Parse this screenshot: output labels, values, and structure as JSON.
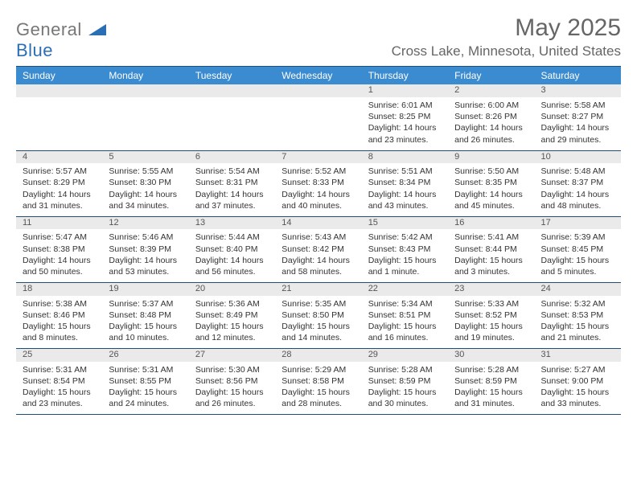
{
  "brand": {
    "name_part1": "General",
    "name_part2": "Blue"
  },
  "title": "May 2025",
  "location": "Cross Lake, Minnesota, United States",
  "colors": {
    "header_bg": "#3b8bd0",
    "header_text": "#ffffff",
    "rule": "#1f4e79",
    "daynum_bg": "#eaeaea",
    "text": "#333333",
    "muted": "#666666",
    "brand_gray": "#777777",
    "brand_blue": "#2a6fb5"
  },
  "day_headers": [
    "Sunday",
    "Monday",
    "Tuesday",
    "Wednesday",
    "Thursday",
    "Friday",
    "Saturday"
  ],
  "weeks": [
    {
      "nums": [
        "",
        "",
        "",
        "",
        "1",
        "2",
        "3"
      ],
      "cells": [
        null,
        null,
        null,
        null,
        {
          "sr": "Sunrise: 6:01 AM",
          "ss": "Sunset: 8:25 PM",
          "d1": "Daylight: 14 hours",
          "d2": "and 23 minutes."
        },
        {
          "sr": "Sunrise: 6:00 AM",
          "ss": "Sunset: 8:26 PM",
          "d1": "Daylight: 14 hours",
          "d2": "and 26 minutes."
        },
        {
          "sr": "Sunrise: 5:58 AM",
          "ss": "Sunset: 8:27 PM",
          "d1": "Daylight: 14 hours",
          "d2": "and 29 minutes."
        }
      ]
    },
    {
      "nums": [
        "4",
        "5",
        "6",
        "7",
        "8",
        "9",
        "10"
      ],
      "cells": [
        {
          "sr": "Sunrise: 5:57 AM",
          "ss": "Sunset: 8:29 PM",
          "d1": "Daylight: 14 hours",
          "d2": "and 31 minutes."
        },
        {
          "sr": "Sunrise: 5:55 AM",
          "ss": "Sunset: 8:30 PM",
          "d1": "Daylight: 14 hours",
          "d2": "and 34 minutes."
        },
        {
          "sr": "Sunrise: 5:54 AM",
          "ss": "Sunset: 8:31 PM",
          "d1": "Daylight: 14 hours",
          "d2": "and 37 minutes."
        },
        {
          "sr": "Sunrise: 5:52 AM",
          "ss": "Sunset: 8:33 PM",
          "d1": "Daylight: 14 hours",
          "d2": "and 40 minutes."
        },
        {
          "sr": "Sunrise: 5:51 AM",
          "ss": "Sunset: 8:34 PM",
          "d1": "Daylight: 14 hours",
          "d2": "and 43 minutes."
        },
        {
          "sr": "Sunrise: 5:50 AM",
          "ss": "Sunset: 8:35 PM",
          "d1": "Daylight: 14 hours",
          "d2": "and 45 minutes."
        },
        {
          "sr": "Sunrise: 5:48 AM",
          "ss": "Sunset: 8:37 PM",
          "d1": "Daylight: 14 hours",
          "d2": "and 48 minutes."
        }
      ]
    },
    {
      "nums": [
        "11",
        "12",
        "13",
        "14",
        "15",
        "16",
        "17"
      ],
      "cells": [
        {
          "sr": "Sunrise: 5:47 AM",
          "ss": "Sunset: 8:38 PM",
          "d1": "Daylight: 14 hours",
          "d2": "and 50 minutes."
        },
        {
          "sr": "Sunrise: 5:46 AM",
          "ss": "Sunset: 8:39 PM",
          "d1": "Daylight: 14 hours",
          "d2": "and 53 minutes."
        },
        {
          "sr": "Sunrise: 5:44 AM",
          "ss": "Sunset: 8:40 PM",
          "d1": "Daylight: 14 hours",
          "d2": "and 56 minutes."
        },
        {
          "sr": "Sunrise: 5:43 AM",
          "ss": "Sunset: 8:42 PM",
          "d1": "Daylight: 14 hours",
          "d2": "and 58 minutes."
        },
        {
          "sr": "Sunrise: 5:42 AM",
          "ss": "Sunset: 8:43 PM",
          "d1": "Daylight: 15 hours",
          "d2": "and 1 minute."
        },
        {
          "sr": "Sunrise: 5:41 AM",
          "ss": "Sunset: 8:44 PM",
          "d1": "Daylight: 15 hours",
          "d2": "and 3 minutes."
        },
        {
          "sr": "Sunrise: 5:39 AM",
          "ss": "Sunset: 8:45 PM",
          "d1": "Daylight: 15 hours",
          "d2": "and 5 minutes."
        }
      ]
    },
    {
      "nums": [
        "18",
        "19",
        "20",
        "21",
        "22",
        "23",
        "24"
      ],
      "cells": [
        {
          "sr": "Sunrise: 5:38 AM",
          "ss": "Sunset: 8:46 PM",
          "d1": "Daylight: 15 hours",
          "d2": "and 8 minutes."
        },
        {
          "sr": "Sunrise: 5:37 AM",
          "ss": "Sunset: 8:48 PM",
          "d1": "Daylight: 15 hours",
          "d2": "and 10 minutes."
        },
        {
          "sr": "Sunrise: 5:36 AM",
          "ss": "Sunset: 8:49 PM",
          "d1": "Daylight: 15 hours",
          "d2": "and 12 minutes."
        },
        {
          "sr": "Sunrise: 5:35 AM",
          "ss": "Sunset: 8:50 PM",
          "d1": "Daylight: 15 hours",
          "d2": "and 14 minutes."
        },
        {
          "sr": "Sunrise: 5:34 AM",
          "ss": "Sunset: 8:51 PM",
          "d1": "Daylight: 15 hours",
          "d2": "and 16 minutes."
        },
        {
          "sr": "Sunrise: 5:33 AM",
          "ss": "Sunset: 8:52 PM",
          "d1": "Daylight: 15 hours",
          "d2": "and 19 minutes."
        },
        {
          "sr": "Sunrise: 5:32 AM",
          "ss": "Sunset: 8:53 PM",
          "d1": "Daylight: 15 hours",
          "d2": "and 21 minutes."
        }
      ]
    },
    {
      "nums": [
        "25",
        "26",
        "27",
        "28",
        "29",
        "30",
        "31"
      ],
      "cells": [
        {
          "sr": "Sunrise: 5:31 AM",
          "ss": "Sunset: 8:54 PM",
          "d1": "Daylight: 15 hours",
          "d2": "and 23 minutes."
        },
        {
          "sr": "Sunrise: 5:31 AM",
          "ss": "Sunset: 8:55 PM",
          "d1": "Daylight: 15 hours",
          "d2": "and 24 minutes."
        },
        {
          "sr": "Sunrise: 5:30 AM",
          "ss": "Sunset: 8:56 PM",
          "d1": "Daylight: 15 hours",
          "d2": "and 26 minutes."
        },
        {
          "sr": "Sunrise: 5:29 AM",
          "ss": "Sunset: 8:58 PM",
          "d1": "Daylight: 15 hours",
          "d2": "and 28 minutes."
        },
        {
          "sr": "Sunrise: 5:28 AM",
          "ss": "Sunset: 8:59 PM",
          "d1": "Daylight: 15 hours",
          "d2": "and 30 minutes."
        },
        {
          "sr": "Sunrise: 5:28 AM",
          "ss": "Sunset: 8:59 PM",
          "d1": "Daylight: 15 hours",
          "d2": "and 31 minutes."
        },
        {
          "sr": "Sunrise: 5:27 AM",
          "ss": "Sunset: 9:00 PM",
          "d1": "Daylight: 15 hours",
          "d2": "and 33 minutes."
        }
      ]
    }
  ]
}
